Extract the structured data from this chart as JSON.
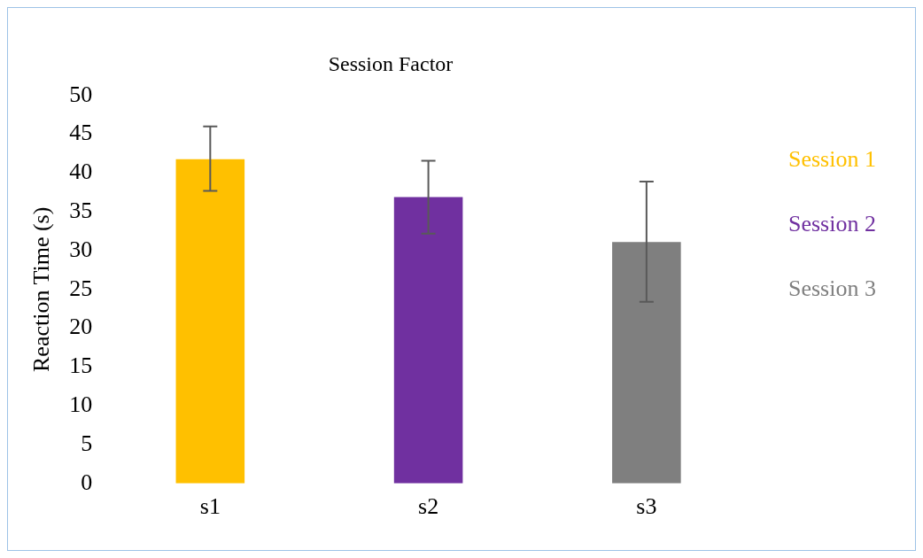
{
  "chart_data": {
    "type": "bar",
    "title": "Session Factor",
    "ylabel": "Reaction Time (s)",
    "categories": [
      "s1",
      "s2",
      "s3"
    ],
    "series": [
      {
        "name": "Session 1",
        "color": "#ffc000",
        "values": [
          41.8,
          null,
          null
        ],
        "errors": [
          [
            37.7,
            46.0
          ],
          null,
          null
        ]
      },
      {
        "name": "Session 2",
        "color": "#7030a0",
        "values": [
          null,
          36.9,
          null
        ],
        "errors": [
          null,
          [
            32.2,
            41.6
          ],
          null
        ]
      },
      {
        "name": "Session 3",
        "color": "#7f7f7f",
        "values": [
          null,
          null,
          31.1
        ],
        "errors": [
          null,
          null,
          [
            23.4,
            38.9
          ]
        ]
      }
    ],
    "ylim": [
      0,
      50
    ],
    "yticks": [
      0,
      5,
      10,
      15,
      20,
      25,
      30,
      35,
      40,
      45,
      50
    ],
    "grid": false,
    "legend": "right"
  }
}
